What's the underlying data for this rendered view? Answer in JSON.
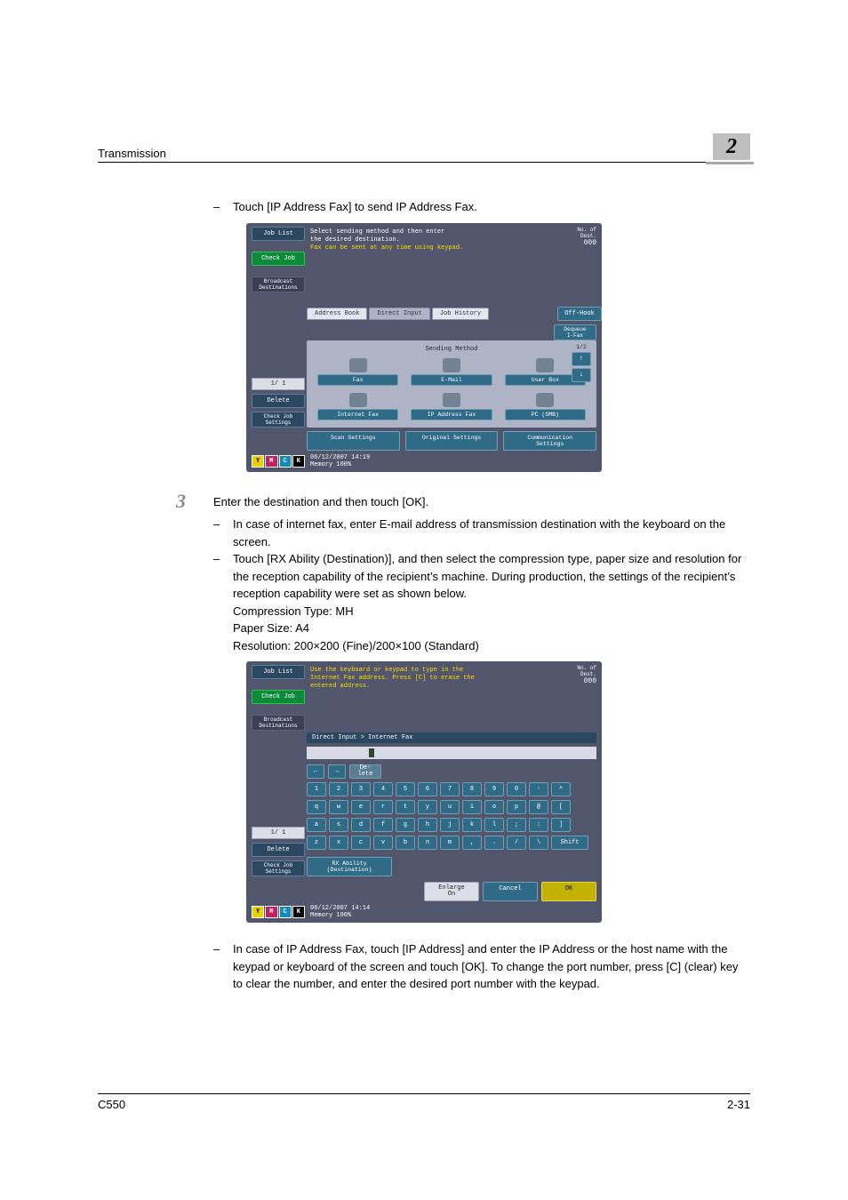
{
  "header": {
    "section": "Transmission",
    "chapter": "2"
  },
  "pre_screenshot": {
    "dash": "–",
    "text": "Touch [IP Address Fax] to send IP Address Fax."
  },
  "lcd1": {
    "job_list": "Job List",
    "check_job": "Check Job",
    "broadcast": "Broadcast\nDestinations",
    "pager_index": "1/  1",
    "delete": "Delete",
    "check_settings": "Check Job\nSettings",
    "msg_l1": "Select sending method and then enter",
    "msg_l2": "the desired destination.",
    "msg_l3": "Fax can be sent at any time using keypad.",
    "count_lbl": "No. of\nDest.",
    "count_val": "000",
    "tab_addr": "Address Book",
    "tab_direct": "Direct Input",
    "tab_hist": "Job History",
    "off_hook": "Off-Hook",
    "dequeue": "Dequeue\nI-Fax",
    "panel_title": "Sending Method",
    "btn_fax": "Fax",
    "btn_email": "E-Mail",
    "btn_userbox": "User Box",
    "btn_ifax": "Internet Fax",
    "btn_ipfax": "IP Address Fax",
    "btn_pcsmb": "PC (SMB)",
    "pager_lbl": "1/2",
    "bot_scan": "Scan Settings",
    "bot_orig": "Original Settings",
    "bot_comm": "Communication\nSettings",
    "datetime": "06/12/2007   14:19",
    "memory": "Memory        100%"
  },
  "step3": {
    "num": "3",
    "text": "Enter the destination and then touch [OK].",
    "b1": "In case of internet fax, enter E-mail address of transmission destination with the keyboard on the screen.",
    "b2": "Touch [RX Ability (Destination)], and then select the compression type, paper size and resolution for the reception capability of the recipient’s machine. During production, the settings of the recipient’s reception capability were set as shown below.",
    "b2a": "Compression Type: MH",
    "b2b": "Paper Size: A4",
    "b2c": "Resolution: 200×200 (Fine)/200×100 (Standard)"
  },
  "lcd2": {
    "job_list": "Job List",
    "check_job": "Check Job",
    "broadcast": "Broadcast\nDestinations",
    "pager_index": "1/  1",
    "delete": "Delete",
    "check_settings": "Check Job\nSettings",
    "msg_l1": "Use the keyboard or keypad to type in the",
    "msg_l2": "Internet Fax address. Press [C] to erase the",
    "msg_l3": "entered address.",
    "count_lbl": "No. of\nDest.",
    "count_val": "000",
    "breadcrumb": "Direct Input > Internet Fax",
    "keys_row1": [
      "1",
      "2",
      "3",
      "4",
      "5",
      "6",
      "7",
      "8",
      "9",
      "0",
      "-",
      "^"
    ],
    "keys_row2": [
      "q",
      "w",
      "e",
      "r",
      "t",
      "y",
      "u",
      "i",
      "o",
      "p",
      "@",
      "["
    ],
    "keys_row3": [
      "a",
      "s",
      "d",
      "f",
      "g",
      "h",
      "j",
      "k",
      "l",
      ";",
      ":",
      "]"
    ],
    "keys_row4": [
      "z",
      "x",
      "c",
      "v",
      "b",
      "n",
      "m",
      ",",
      ".",
      "/",
      "\\"
    ],
    "shift": "Shift",
    "arrow_l": "←",
    "arrow_r": "→",
    "delkey": "De-\nlete",
    "rx": "RX Ability\n(Destination)",
    "enlarge": "Enlarge\nOn",
    "cancel": "Cancel",
    "ok": "OK",
    "datetime": "06/12/2007   14:14",
    "memory": "Memory        100%"
  },
  "post_screenshot": {
    "dash": "–",
    "text": "In case of IP Address Fax, touch [IP Address] and enter the IP Address or the host name with the keypad or keyboard of the screen and touch [OK]. To change the port number, press [C] (clear) key to clear the number, and enter the desired port number with the keypad."
  },
  "footer": {
    "model": "C550",
    "page": "2-31"
  },
  "toners": {
    "y": "Y",
    "m": "M",
    "c": "C",
    "k": "K"
  }
}
